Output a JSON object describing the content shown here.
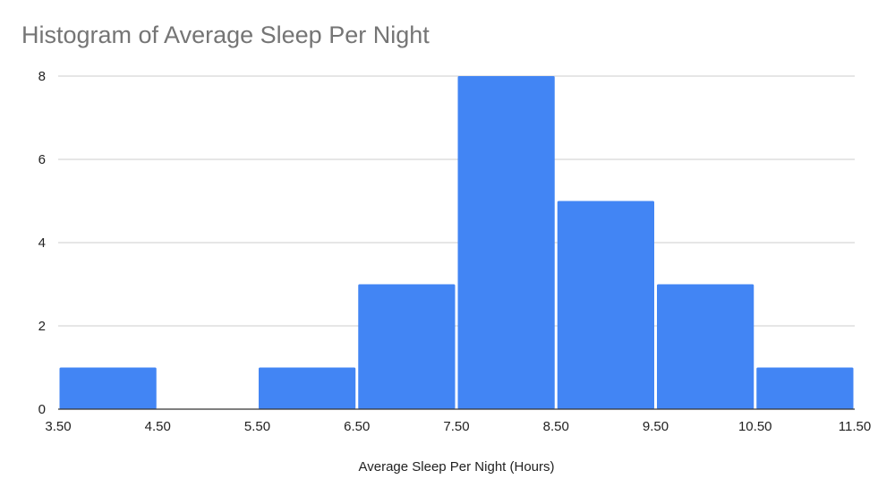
{
  "chart_data": {
    "type": "bar",
    "title": "Histogram of Average Sleep Per Night",
    "xlabel": "Average Sleep Per Night (Hours)",
    "ylabel": "",
    "bin_edges": [
      3.5,
      4.5,
      5.5,
      6.5,
      7.5,
      8.5,
      9.5,
      10.5,
      11.5
    ],
    "x_tick_labels": [
      "3.50",
      "4.50",
      "5.50",
      "6.50",
      "7.50",
      "8.50",
      "9.50",
      "10.50",
      "11.50"
    ],
    "values": [
      1,
      0,
      1,
      3,
      8,
      5,
      3,
      1
    ],
    "ylim": [
      0,
      8
    ],
    "yticks": [
      0,
      2,
      4,
      6,
      8
    ],
    "xlim": [
      3.5,
      11.5
    ],
    "grid": true,
    "legend": "none",
    "bar_color": "#4285f4",
    "grid_color": "#cccccc",
    "axis_color": "#333333"
  }
}
